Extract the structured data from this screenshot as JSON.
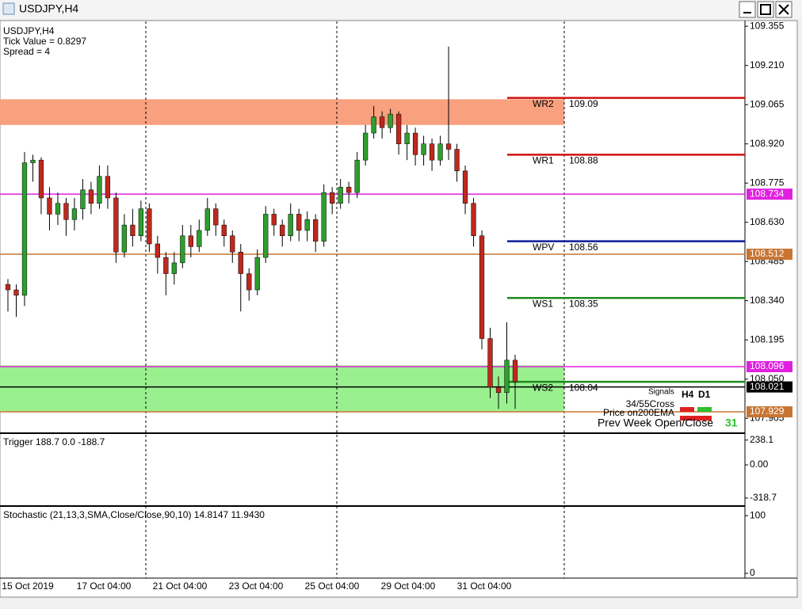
{
  "window": {
    "title": "USDJPY,H4"
  },
  "info": {
    "symbol": "USDJPY,H4",
    "tick_value": "Tick Value = 0.8297",
    "spread": "Spread = 4"
  },
  "chart_data": {
    "type": "candlestick",
    "ylim": [
      107.85,
      109.373
    ],
    "yticks": [
      {
        "value": 109.355,
        "label": "109.355"
      },
      {
        "value": 109.21,
        "label": "109.210"
      },
      {
        "value": 109.065,
        "label": "109.065"
      },
      {
        "value": 108.92,
        "label": "108.920"
      },
      {
        "value": 108.775,
        "label": "108.775"
      },
      {
        "value": 108.63,
        "label": "108.630"
      },
      {
        "value": 108.485,
        "label": "108.485"
      },
      {
        "value": 108.34,
        "label": "108.340"
      },
      {
        "value": 108.195,
        "label": "108.195"
      },
      {
        "value": 108.05,
        "label": "108.050"
      },
      {
        "value": 107.905,
        "label": "107.905"
      }
    ],
    "up_color": "#2e9e2e",
    "down_color": "#c0281e",
    "candles": [
      [
        108.4,
        108.42,
        108.3,
        108.38
      ],
      [
        108.38,
        108.4,
        108.28,
        108.36
      ],
      [
        108.36,
        108.89,
        108.32,
        108.85
      ],
      [
        108.85,
        108.88,
        108.78,
        108.86
      ],
      [
        108.86,
        108.87,
        108.66,
        108.72
      ],
      [
        108.72,
        108.76,
        108.6,
        108.66
      ],
      [
        108.66,
        108.74,
        108.62,
        108.7
      ],
      [
        108.7,
        108.72,
        108.58,
        108.64
      ],
      [
        108.64,
        108.72,
        108.6,
        108.68
      ],
      [
        108.68,
        108.79,
        108.64,
        108.75
      ],
      [
        108.75,
        108.78,
        108.66,
        108.7
      ],
      [
        108.7,
        108.84,
        108.68,
        108.8
      ],
      [
        108.8,
        108.84,
        108.68,
        108.72
      ],
      [
        108.72,
        108.74,
        108.48,
        108.52
      ],
      [
        108.52,
        108.66,
        108.5,
        108.62
      ],
      [
        108.62,
        108.68,
        108.54,
        108.58
      ],
      [
        108.58,
        108.71,
        108.56,
        108.68
      ],
      [
        108.68,
        108.7,
        108.52,
        108.55
      ],
      [
        108.55,
        108.58,
        108.44,
        108.5
      ],
      [
        108.5,
        108.52,
        108.36,
        108.44
      ],
      [
        108.44,
        108.52,
        108.4,
        108.48
      ],
      [
        108.48,
        108.62,
        108.46,
        108.58
      ],
      [
        108.58,
        108.62,
        108.5,
        108.54
      ],
      [
        108.54,
        108.64,
        108.52,
        108.6
      ],
      [
        108.6,
        108.72,
        108.58,
        108.68
      ],
      [
        108.68,
        108.7,
        108.58,
        108.62
      ],
      [
        108.62,
        108.64,
        108.54,
        108.58
      ],
      [
        108.58,
        108.6,
        108.48,
        108.52
      ],
      [
        108.52,
        108.55,
        108.3,
        108.44
      ],
      [
        108.44,
        108.46,
        108.34,
        108.38
      ],
      [
        108.38,
        108.53,
        108.36,
        108.5
      ],
      [
        108.5,
        108.69,
        108.48,
        108.66
      ],
      [
        108.66,
        108.68,
        108.58,
        108.62
      ],
      [
        108.62,
        108.64,
        108.54,
        108.58
      ],
      [
        108.58,
        108.7,
        108.56,
        108.66
      ],
      [
        108.66,
        108.68,
        108.56,
        108.6
      ],
      [
        108.6,
        108.67,
        108.56,
        108.64
      ],
      [
        108.64,
        108.66,
        108.52,
        108.56
      ],
      [
        108.56,
        108.77,
        108.54,
        108.74
      ],
      [
        108.74,
        108.76,
        108.66,
        108.7
      ],
      [
        108.7,
        108.79,
        108.68,
        108.76
      ],
      [
        108.76,
        108.78,
        108.7,
        108.74
      ],
      [
        108.74,
        108.89,
        108.72,
        108.86
      ],
      [
        108.86,
        108.99,
        108.84,
        108.96
      ],
      [
        108.96,
        109.06,
        108.94,
        109.02
      ],
      [
        109.02,
        109.04,
        108.94,
        108.98
      ],
      [
        108.98,
        109.05,
        108.96,
        109.03
      ],
      [
        109.03,
        109.04,
        108.88,
        108.92
      ],
      [
        108.92,
        108.99,
        108.86,
        108.96
      ],
      [
        108.96,
        108.98,
        108.84,
        108.88
      ],
      [
        108.88,
        108.95,
        108.84,
        108.92
      ],
      [
        108.92,
        108.94,
        108.82,
        108.86
      ],
      [
        108.86,
        108.95,
        108.84,
        108.92
      ],
      [
        108.92,
        109.28,
        108.86,
        108.9
      ],
      [
        108.9,
        108.92,
        108.78,
        108.82
      ],
      [
        108.82,
        108.84,
        108.66,
        108.7
      ],
      [
        108.7,
        108.72,
        108.54,
        108.58
      ],
      [
        108.58,
        108.6,
        108.16,
        108.2
      ],
      [
        108.2,
        108.24,
        107.98,
        108.02
      ],
      [
        108.02,
        108.06,
        107.94,
        108.0
      ],
      [
        108.0,
        108.26,
        107.96,
        108.12
      ],
      [
        108.12,
        108.14,
        107.94,
        108.04
      ]
    ],
    "x_labels": [
      "15 Oct 2019",
      "17 Oct 04:00",
      "21 Oct 04:00",
      "23 Oct 04:00",
      "25 Oct 04:00",
      "29 Oct 04:00",
      "31 Oct 04:00"
    ],
    "zones": [
      {
        "from": 108.99,
        "to": 109.085,
        "color": "#f9a07f"
      },
      {
        "from": 107.93,
        "to": 108.101,
        "color": "#9af08f"
      }
    ],
    "lines": [
      {
        "value": 108.734,
        "color": "#e020e0"
      },
      {
        "value": 108.512,
        "color": "#c87533"
      },
      {
        "value": 108.096,
        "color": "#e020e0"
      },
      {
        "value": 107.929,
        "color": "#c87533"
      },
      {
        "value": 108.021,
        "color": "#000000"
      }
    ],
    "levels": [
      {
        "name": "WR2",
        "value": 109.09,
        "color": "#d01010"
      },
      {
        "name": "WR1",
        "value": 108.88,
        "color": "#d01010"
      },
      {
        "name": "WPV",
        "value": 108.56,
        "color": "#0a1e9a"
      },
      {
        "name": "WS1",
        "value": 108.35,
        "color": "#1e8a1e"
      },
      {
        "name": "WS2",
        "value": 108.04,
        "color": "#1e8a1e"
      }
    ]
  },
  "signals": {
    "title": "Signals",
    "h4": "H4",
    "d1": "D1",
    "cross": "34/55Cross",
    "ema": "Price on200EMA",
    "prev_week": "Prev Week Open/Close",
    "count": "31"
  },
  "trigger": {
    "label": "Trigger 188.7 0.0 -188.7",
    "ylim": [
      -388,
      289
    ],
    "yticks": [
      238.1,
      {
        "value": 0,
        "label": "0.00"
      },
      -318.7
    ]
  },
  "stochastic": {
    "label": "Stochastic (21,13,3,SMA,Close/Close,90,10) 14.8147 11.9430",
    "ylim": [
      -6.9,
      113.9
    ],
    "yticks": [
      100,
      0
    ]
  }
}
